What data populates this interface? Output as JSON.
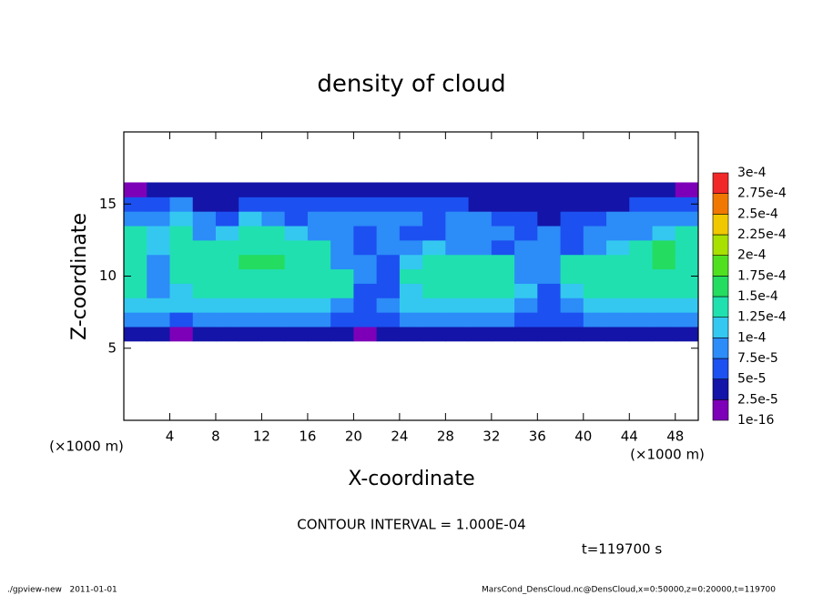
{
  "chart_data": {
    "type": "heatmap",
    "title": "density of cloud",
    "xlabel": "X-coordinate",
    "ylabel": "Z-coordinate",
    "xunit": "(×1000 m)",
    "yunit": "(×1000 m)",
    "contour_note": "CONTOUR INTERVAL = 1.000E-04",
    "time_note": "t=119700 s",
    "footer_left": "./gpview-new   2011-01-01",
    "footer_right": "MarsCond_DensCloud.nc@DensCloud,x=0:50000,z=0:20000,t=119700",
    "xlim": [
      0,
      50
    ],
    "ylim": [
      0,
      20
    ],
    "xticks": [
      4,
      8,
      12,
      16,
      20,
      24,
      28,
      32,
      36,
      40,
      44,
      48
    ],
    "yticks": [
      5,
      10,
      15
    ],
    "x": [
      1,
      3,
      5,
      7,
      9,
      11,
      13,
      15,
      17,
      19,
      21,
      23,
      25,
      27,
      29,
      31,
      33,
      35,
      37,
      39,
      41,
      43,
      45,
      47,
      49
    ],
    "z": [
      6,
      7,
      8,
      9,
      10,
      11,
      12,
      13,
      14,
      15,
      16
    ],
    "values": [
      [
        4e-05,
        4e-05,
        1e-05,
        4e-05,
        4e-05,
        4e-05,
        4e-05,
        4e-05,
        4e-05,
        4e-05,
        1e-05,
        4e-05,
        4e-05,
        4e-05,
        4e-05,
        4e-05,
        4e-05,
        4e-05,
        4e-05,
        4e-05,
        4e-05,
        4e-05,
        4e-05,
        4e-05,
        4e-05
      ],
      [
        9e-05,
        9e-05,
        6e-05,
        9e-05,
        9e-05,
        9e-05,
        9e-05,
        9e-05,
        9e-05,
        6e-05,
        6e-05,
        6e-05,
        9e-05,
        9e-05,
        9e-05,
        9e-05,
        9e-05,
        6e-05,
        6e-05,
        6e-05,
        9e-05,
        9e-05,
        9e-05,
        9e-05,
        9e-05
      ],
      [
        0.00011,
        0.00011,
        0.00011,
        0.00011,
        0.00011,
        0.00011,
        0.00011,
        0.00011,
        0.00011,
        9e-05,
        6e-05,
        9e-05,
        0.00011,
        0.00011,
        0.00011,
        0.00011,
        0.00011,
        9e-05,
        6e-05,
        9e-05,
        0.00011,
        0.00011,
        0.00011,
        0.00011,
        0.00011
      ],
      [
        0.00014,
        9e-05,
        0.00011,
        0.00014,
        0.00014,
        0.00014,
        0.00014,
        0.00014,
        0.00014,
        0.00014,
        6e-05,
        6e-05,
        0.00011,
        0.00014,
        0.00014,
        0.00014,
        0.00014,
        0.00011,
        6e-05,
        0.00011,
        0.00014,
        0.00014,
        0.00014,
        0.00014,
        0.00014
      ],
      [
        0.00014,
        9e-05,
        0.00014,
        0.00014,
        0.00014,
        0.00014,
        0.00014,
        0.00014,
        0.00014,
        0.00014,
        9e-05,
        6e-05,
        0.00014,
        0.00014,
        0.00014,
        0.00014,
        0.00014,
        9e-05,
        9e-05,
        0.00014,
        0.00014,
        0.00014,
        0.00014,
        0.00014,
        0.00014
      ],
      [
        0.00014,
        9e-05,
        0.00014,
        0.00014,
        0.00014,
        0.00016,
        0.00016,
        0.00014,
        0.00014,
        9e-05,
        9e-05,
        6e-05,
        0.00011,
        0.00014,
        0.00014,
        0.00014,
        0.00014,
        9e-05,
        9e-05,
        0.00014,
        0.00014,
        0.00014,
        0.00014,
        0.00016,
        0.00014
      ],
      [
        0.00014,
        0.00011,
        0.00014,
        0.00014,
        0.00014,
        0.00014,
        0.00014,
        0.00014,
        0.00014,
        9e-05,
        6e-05,
        9e-05,
        9e-05,
        0.00011,
        9e-05,
        9e-05,
        6e-05,
        9e-05,
        9e-05,
        6e-05,
        9e-05,
        0.00011,
        0.00014,
        0.00016,
        0.00014
      ],
      [
        0.00014,
        0.00011,
        0.00014,
        9e-05,
        0.00011,
        0.00014,
        0.00014,
        0.00011,
        9e-05,
        9e-05,
        6e-05,
        9e-05,
        6e-05,
        6e-05,
        9e-05,
        9e-05,
        9e-05,
        6e-05,
        9e-05,
        6e-05,
        9e-05,
        9e-05,
        9e-05,
        0.00011,
        0.00014
      ],
      [
        9e-05,
        9e-05,
        0.00011,
        9e-05,
        6e-05,
        0.00011,
        9e-05,
        6e-05,
        9e-05,
        9e-05,
        9e-05,
        9e-05,
        9e-05,
        6e-05,
        9e-05,
        9e-05,
        6e-05,
        6e-05,
        4e-05,
        6e-05,
        6e-05,
        9e-05,
        9e-05,
        9e-05,
        9e-05
      ],
      [
        6e-05,
        6e-05,
        9e-05,
        4e-05,
        4e-05,
        6e-05,
        6e-05,
        6e-05,
        6e-05,
        6e-05,
        6e-05,
        6e-05,
        6e-05,
        6e-05,
        6e-05,
        4e-05,
        4e-05,
        4e-05,
        4e-05,
        4e-05,
        4e-05,
        4e-05,
        6e-05,
        6e-05,
        6e-05
      ],
      [
        1e-05,
        4e-05,
        4e-05,
        4e-05,
        4e-05,
        4e-05,
        4e-05,
        4e-05,
        4e-05,
        4e-05,
        4e-05,
        4e-05,
        4e-05,
        4e-05,
        4e-05,
        4e-05,
        4e-05,
        4e-05,
        4e-05,
        4e-05,
        4e-05,
        4e-05,
        4e-05,
        4e-05,
        1e-05
      ]
    ],
    "colorbar": {
      "levels": [
        {
          "value": 1e-16,
          "label": "1e-16"
        },
        {
          "value": 2.5e-05,
          "label": "2.5e-5"
        },
        {
          "value": 5e-05,
          "label": "5e-5"
        },
        {
          "value": 7.5e-05,
          "label": "7.5e-5"
        },
        {
          "value": 0.0001,
          "label": "1e-4"
        },
        {
          "value": 0.000125,
          "label": "1.25e-4"
        },
        {
          "value": 0.00015,
          "label": "1.5e-4"
        },
        {
          "value": 0.000175,
          "label": "1.75e-4"
        },
        {
          "value": 0.0002,
          "label": "2e-4"
        },
        {
          "value": 0.000225,
          "label": "2.25e-4"
        },
        {
          "value": 0.00025,
          "label": "2.5e-4"
        },
        {
          "value": 0.000275,
          "label": "2.75e-4"
        },
        {
          "value": 0.0003,
          "label": "3e-4"
        }
      ],
      "colors": [
        "#7d00b8",
        "#1414a8",
        "#1c50f0",
        "#2c8cf8",
        "#34c8f0",
        "#20e0b0",
        "#24dc60",
        "#50e020",
        "#a8e000",
        "#f0c800",
        "#f07800",
        "#f02828"
      ]
    }
  }
}
